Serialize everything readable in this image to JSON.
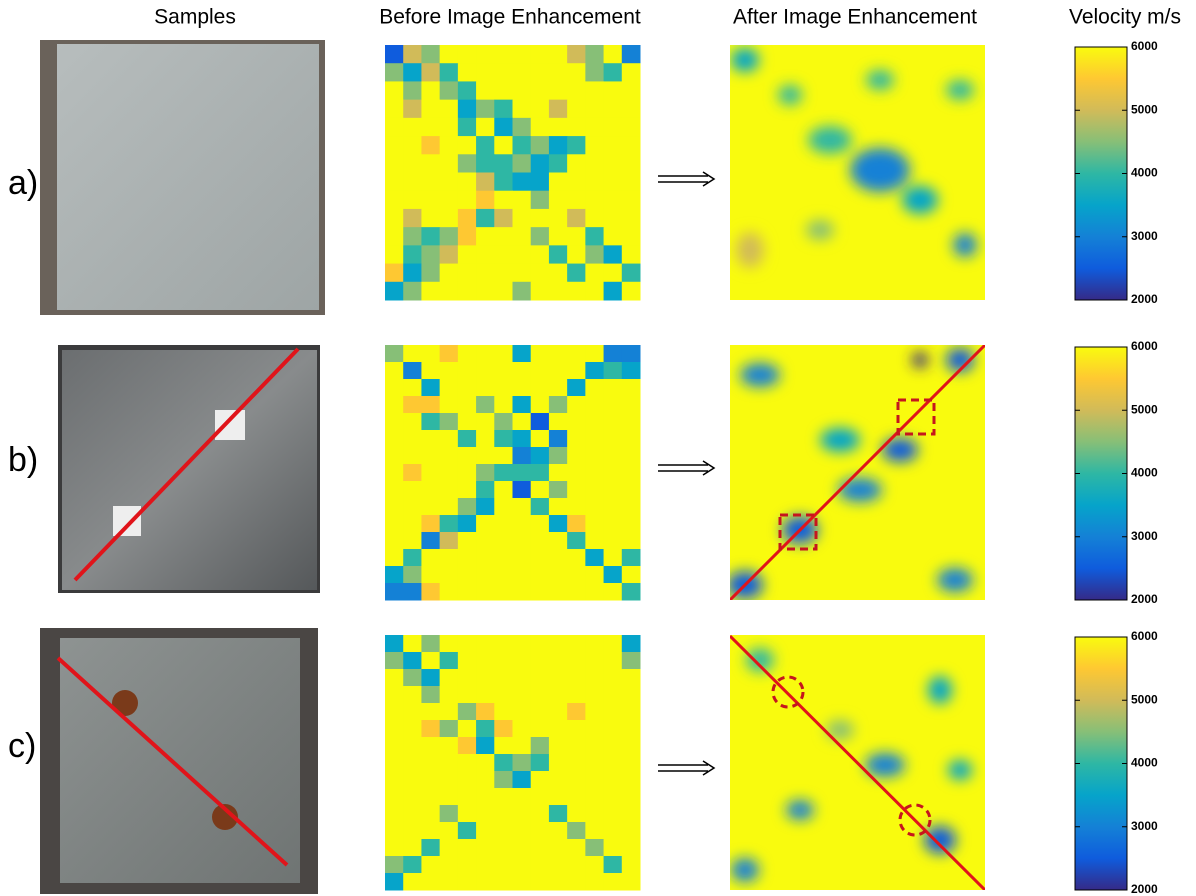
{
  "headers": [
    "Samples",
    "Before Image Enhancement",
    "After Image Enhancement",
    "Velocity m/s"
  ],
  "rows": [
    {
      "label": "a)",
      "before": [
        [
          2500,
          5000,
          4500,
          6000,
          6000,
          6000,
          6000,
          6000,
          6000,
          6000,
          5000,
          4500,
          6000,
          3000
        ],
        [
          4500,
          3500,
          5000,
          4000,
          6000,
          6000,
          6000,
          6000,
          6000,
          6000,
          6000,
          4500,
          4000,
          6000
        ],
        [
          6000,
          4500,
          6000,
          4500,
          4000,
          6000,
          6000,
          6000,
          6000,
          6000,
          6000,
          6000,
          6000,
          6000
        ],
        [
          6000,
          5000,
          6000,
          6000,
          3500,
          4500,
          4000,
          6000,
          6000,
          5000,
          6000,
          6000,
          6000,
          6000
        ],
        [
          6000,
          6000,
          6000,
          6000,
          4000,
          6000,
          3500,
          4500,
          6000,
          6000,
          6000,
          6000,
          6000,
          6000
        ],
        [
          6000,
          6000,
          5500,
          6000,
          6000,
          4000,
          6000,
          4000,
          4500,
          3500,
          4000,
          6000,
          6000,
          6000
        ],
        [
          6000,
          6000,
          6000,
          6000,
          4500,
          4000,
          4000,
          4500,
          3500,
          4000,
          6000,
          6000,
          6000,
          6000
        ],
        [
          6000,
          6000,
          6000,
          6000,
          6000,
          5000,
          4000,
          3500,
          3500,
          6000,
          6000,
          6000,
          6000,
          6000
        ],
        [
          6000,
          6000,
          6000,
          6000,
          6000,
          5500,
          6000,
          6000,
          4500,
          6000,
          6000,
          6000,
          6000,
          6000
        ],
        [
          6000,
          5000,
          6000,
          6000,
          5500,
          4000,
          5000,
          6000,
          6000,
          6000,
          5000,
          6000,
          6000,
          6000
        ],
        [
          6000,
          4500,
          4000,
          4500,
          5500,
          6000,
          6000,
          6000,
          4500,
          6000,
          6000,
          4000,
          6000,
          6000
        ],
        [
          6000,
          4000,
          4500,
          5000,
          6000,
          6000,
          6000,
          6000,
          6000,
          4000,
          6000,
          4500,
          3500,
          6000
        ],
        [
          5500,
          3500,
          4500,
          6000,
          6000,
          6000,
          6000,
          6000,
          6000,
          6000,
          4000,
          6000,
          6000,
          4000
        ],
        [
          3500,
          4500,
          6000,
          6000,
          6000,
          6000,
          6000,
          4500,
          6000,
          6000,
          6000,
          6000,
          3500,
          6000
        ]
      ]
    },
    {
      "label": "b)",
      "before": [
        [
          4500,
          6000,
          6000,
          5500,
          6000,
          6000,
          6000,
          3500,
          6000,
          6000,
          6000,
          6000,
          3000,
          3000
        ],
        [
          6000,
          3000,
          6000,
          6000,
          6000,
          6000,
          6000,
          6000,
          6000,
          6000,
          6000,
          3500,
          4000,
          3500
        ],
        [
          6000,
          6000,
          3500,
          6000,
          6000,
          6000,
          6000,
          6000,
          6000,
          6000,
          3500,
          6000,
          6000,
          6000
        ],
        [
          6000,
          5500,
          5500,
          6000,
          6000,
          4500,
          6000,
          3500,
          6000,
          4500,
          6000,
          6000,
          6000,
          6000
        ],
        [
          6000,
          6000,
          4000,
          4500,
          6000,
          6000,
          4500,
          6000,
          2500,
          6000,
          6000,
          6000,
          6000,
          6000
        ],
        [
          6000,
          6000,
          6000,
          6000,
          4000,
          6000,
          4000,
          3500,
          6000,
          3000,
          6000,
          6000,
          6000,
          6000
        ],
        [
          6000,
          6000,
          6000,
          6000,
          6000,
          6000,
          6000,
          3000,
          3500,
          4500,
          6000,
          6000,
          6000,
          6000
        ],
        [
          6000,
          5500,
          6000,
          6000,
          6000,
          4500,
          4000,
          4000,
          4000,
          6000,
          6000,
          6000,
          6000,
          6000
        ],
        [
          6000,
          6000,
          6000,
          6000,
          6000,
          4000,
          6000,
          2500,
          6000,
          4500,
          6000,
          6000,
          6000,
          6000
        ],
        [
          6000,
          6000,
          6000,
          6000,
          4500,
          3500,
          6000,
          6000,
          4000,
          6000,
          6000,
          6000,
          6000,
          6000
        ],
        [
          6000,
          6000,
          5500,
          4000,
          3500,
          6000,
          6000,
          6000,
          6000,
          3500,
          5500,
          6000,
          6000,
          6000
        ],
        [
          6000,
          6000,
          3000,
          5000,
          6000,
          6000,
          6000,
          6000,
          6000,
          6000,
          4000,
          6000,
          6000,
          6000
        ],
        [
          6000,
          4000,
          6000,
          6000,
          6000,
          6000,
          6000,
          6000,
          6000,
          6000,
          6000,
          3500,
          6000,
          4000
        ],
        [
          3500,
          4500,
          6000,
          6000,
          6000,
          6000,
          6000,
          6000,
          6000,
          6000,
          6000,
          6000,
          3500,
          6000
        ],
        [
          3000,
          3000,
          5500,
          6000,
          6000,
          6000,
          6000,
          6000,
          6000,
          6000,
          6000,
          6000,
          6000,
          4000
        ]
      ]
    },
    {
      "label": "c)",
      "before": [
        [
          3500,
          6000,
          4500,
          6000,
          6000,
          6000,
          6000,
          6000,
          6000,
          6000,
          6000,
          6000,
          6000,
          3500
        ],
        [
          4500,
          3500,
          6000,
          4000,
          6000,
          6000,
          6000,
          6000,
          6000,
          6000,
          6000,
          6000,
          6000,
          4500
        ],
        [
          6000,
          4500,
          3500,
          6000,
          6000,
          6000,
          6000,
          6000,
          6000,
          6000,
          6000,
          6000,
          6000,
          6000
        ],
        [
          6000,
          6000,
          4500,
          6000,
          6000,
          6000,
          6000,
          6000,
          6000,
          6000,
          6000,
          6000,
          6000,
          6000
        ],
        [
          6000,
          6000,
          6000,
          6000,
          4500,
          5500,
          6000,
          6000,
          6000,
          6000,
          5500,
          6000,
          6000,
          6000
        ],
        [
          6000,
          6000,
          5500,
          4500,
          6000,
          4000,
          5500,
          6000,
          6000,
          6000,
          6000,
          6000,
          6000,
          6000
        ],
        [
          6000,
          6000,
          6000,
          6000,
          5500,
          3500,
          6000,
          6000,
          4500,
          6000,
          6000,
          6000,
          6000,
          6000
        ],
        [
          6000,
          6000,
          6000,
          6000,
          6000,
          6000,
          4000,
          4500,
          4000,
          6000,
          6000,
          6000,
          6000,
          6000
        ],
        [
          6000,
          6000,
          6000,
          6000,
          6000,
          6000,
          4500,
          3500,
          6000,
          6000,
          6000,
          6000,
          6000,
          6000
        ],
        [
          6000,
          6000,
          6000,
          6000,
          6000,
          6000,
          6000,
          6000,
          6000,
          6000,
          6000,
          6000,
          6000,
          6000
        ],
        [
          6000,
          6000,
          6000,
          4500,
          6000,
          6000,
          6000,
          6000,
          6000,
          4000,
          6000,
          6000,
          6000,
          6000
        ],
        [
          6000,
          6000,
          6000,
          6000,
          4000,
          6000,
          6000,
          6000,
          6000,
          6000,
          4500,
          6000,
          6000,
          6000
        ],
        [
          6000,
          6000,
          4000,
          6000,
          6000,
          6000,
          6000,
          6000,
          6000,
          6000,
          6000,
          4500,
          6000,
          6000
        ],
        [
          4500,
          4000,
          6000,
          6000,
          6000,
          6000,
          6000,
          6000,
          6000,
          6000,
          6000,
          6000,
          4000,
          6000
        ],
        [
          3500,
          6000,
          6000,
          6000,
          6000,
          6000,
          6000,
          6000,
          6000,
          6000,
          6000,
          6000,
          6000,
          6000
        ]
      ]
    }
  ],
  "colorbar": {
    "lim": [
      2000,
      6000
    ],
    "ticks": [
      2000,
      3000,
      4000,
      5000,
      6000
    ],
    "colormap": [
      "#352a87",
      "#0f5cdd",
      "#1481d6",
      "#06a4ca",
      "#2eb7a4",
      "#87bf77",
      "#d1bb59",
      "#fec832",
      "#f9fb0e"
    ]
  }
}
